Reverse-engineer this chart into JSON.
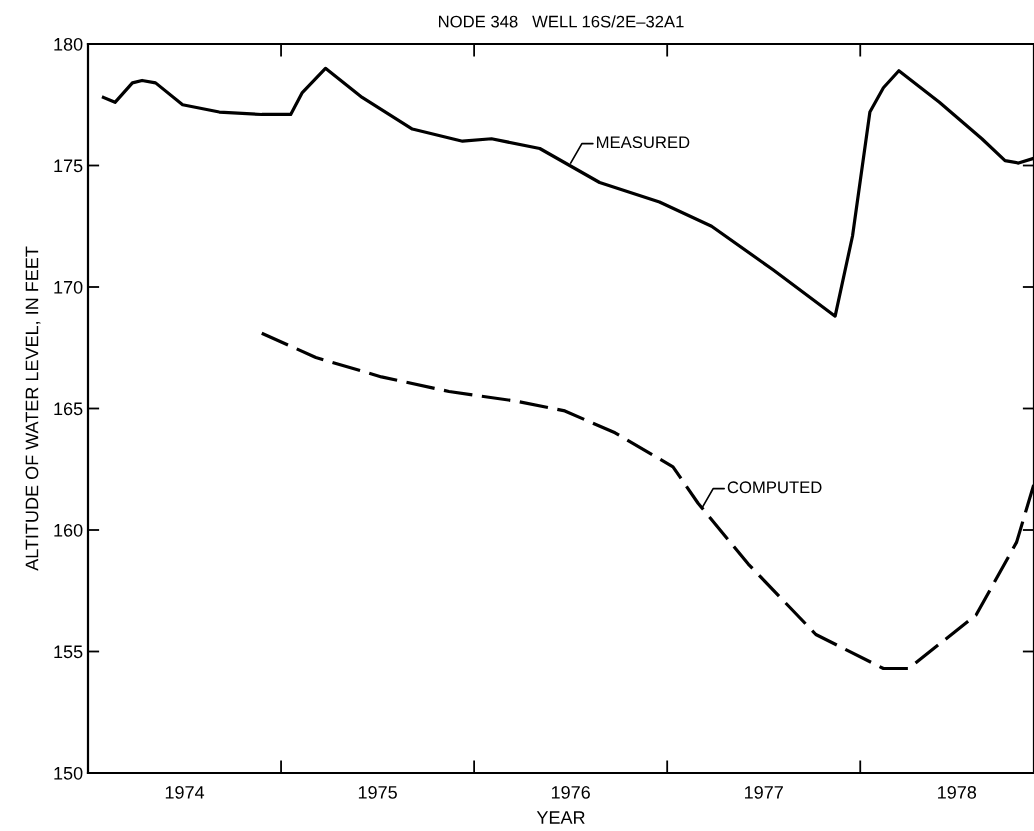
{
  "chart_data": {
    "type": "line",
    "title": "NODE 348   WELL 16S/2E–32A1",
    "xlabel": "YEAR",
    "ylabel": "ALTITUDE OF WATER LEVEL, IN FEET",
    "xlim": [
      1974.0,
      1978.9
    ],
    "ylim": [
      150,
      180
    ],
    "xticks": [
      {
        "value": 1974.5,
        "label": "1974"
      },
      {
        "value": 1975,
        "label": null
      },
      {
        "value": 1975.5,
        "label": "1975"
      },
      {
        "value": 1976,
        "label": null
      },
      {
        "value": 1976.5,
        "label": "1976"
      },
      {
        "value": 1977,
        "label": null
      },
      {
        "value": 1977.5,
        "label": "1977"
      },
      {
        "value": 1978,
        "label": null
      },
      {
        "value": 1978.5,
        "label": "1978"
      }
    ],
    "yticks": [
      150,
      155,
      160,
      165,
      170,
      175,
      180
    ],
    "annotations": [
      {
        "text": "MEASURED",
        "x": 1976.5,
        "y": 175.1
      },
      {
        "text": "COMPUTED",
        "x": 1977.18,
        "y": 160.9
      }
    ],
    "series": [
      {
        "color": "#000000",
        "line_style": "solid",
        "x": [
          1974.08,
          1974.14,
          1974.23,
          1974.28,
          1974.35,
          1974.49,
          1974.68,
          1974.9,
          1975.05,
          1975.11,
          1975.23,
          1975.42,
          1975.68,
          1975.94,
          1976.09,
          1976.34,
          1976.65,
          1976.96,
          1977.23,
          1977.55,
          1977.87,
          1977.96,
          1978.05,
          1978.12,
          1978.2,
          1978.41,
          1978.63,
          1978.75,
          1978.82,
          1978.9
        ],
        "values": [
          177.8,
          177.6,
          178.4,
          178.5,
          178.4,
          177.5,
          177.2,
          177.1,
          177.1,
          178.0,
          179.0,
          177.8,
          176.5,
          176.0,
          176.1,
          175.7,
          174.3,
          173.5,
          172.5,
          170.7,
          168.8,
          172.1,
          177.2,
          178.2,
          178.9,
          177.6,
          176.1,
          175.2,
          175.1,
          175.3
        ]
      },
      {
        "color": "#000000",
        "line_style": "dashed",
        "x": [
          1974.9,
          1975.18,
          1975.52,
          1975.87,
          1976.22,
          1976.47,
          1976.73,
          1977.03,
          1977.16,
          1977.42,
          1977.77,
          1978.12,
          1978.25,
          1978.6,
          1978.81,
          1978.9
        ],
        "values": [
          168.1,
          167.1,
          166.3,
          165.7,
          165.3,
          164.9,
          164.0,
          162.6,
          161.1,
          158.6,
          155.7,
          154.3,
          154.3,
          156.5,
          159.5,
          161.9
        ]
      }
    ]
  }
}
